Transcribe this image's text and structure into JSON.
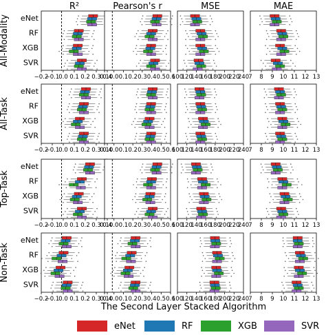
{
  "chart_data": {
    "type": "boxplot-grid",
    "col_titles": [
      "R²",
      "Pearson's r",
      "MSE",
      "MAE"
    ],
    "row_labels": [
      "All-Modality",
      "All-Task",
      "Top-Task",
      "Non-Task"
    ],
    "category_labels": [
      "eNet",
      "RF",
      "XGB",
      "SVR"
    ],
    "x_ticks": [
      [
        "−0.2",
        "−0.1",
        "0.0",
        "0.1",
        "0.2",
        "0.3",
        "0.4"
      ],
      [
        "0.1",
        "0.0",
        "0.1",
        "0.2",
        "0.3",
        "0.4",
        "0.5",
        "0.6"
      ],
      [
        "100",
        "120",
        "140",
        "160",
        "180",
        "200",
        "220",
        "240"
      ],
      [
        "7",
        "8",
        "9",
        "10",
        "11",
        "12",
        "13"
      ]
    ],
    "x_limits": [
      [
        -0.2,
        0.45
      ],
      [
        -0.1,
        0.75
      ],
      [
        100,
        250
      ],
      [
        7,
        13
      ]
    ],
    "dashed_reference_x": [
      0.0,
      0.0
    ],
    "legend_title": "The Second Layer Stacked Algorithm",
    "legend_entries": [
      "eNet",
      "RF",
      "XGB",
      "SVR"
    ],
    "colors": {
      "eNet": "#d62728",
      "RF": "#1f77b4",
      "XGB": "#2ca02c",
      "SVR": "#9467bd"
    },
    "medians": {
      "All-Modality": {
        "R2": [
          [
            0.31,
            0.3,
            0.29,
            0.3
          ],
          [
            0.17,
            0.16,
            0.15,
            0.17
          ],
          [
            0.16,
            0.15,
            0.12,
            0.16
          ],
          [
            0.2,
            0.18,
            0.17,
            0.2
          ]
        ],
        "Pearson": [
          [
            0.58,
            0.57,
            0.55,
            0.57
          ],
          [
            0.52,
            0.5,
            0.48,
            0.52
          ],
          [
            0.5,
            0.49,
            0.46,
            0.5
          ],
          [
            0.55,
            0.53,
            0.5,
            0.55
          ]
        ],
        "MSE": [
          [
            140,
            143,
            145,
            140
          ],
          [
            152,
            155,
            158,
            152
          ],
          [
            152,
            156,
            160,
            152
          ],
          [
            148,
            150,
            154,
            146
          ]
        ],
        "MAE": [
          [
            9.2,
            9.3,
            9.4,
            9.2
          ],
          [
            9.8,
            9.9,
            10.0,
            9.8
          ],
          [
            9.7,
            9.9,
            10.1,
            9.8
          ],
          [
            9.3,
            9.5,
            9.7,
            9.4
          ]
        ]
      },
      "All-Task": {
        "R2": [
          [
            0.24,
            0.23,
            0.22,
            0.24
          ],
          [
            0.22,
            0.21,
            0.2,
            0.22
          ],
          [
            0.18,
            0.16,
            0.14,
            0.18
          ],
          [
            0.22,
            0.21,
            0.2,
            0.22
          ]
        ],
        "Pearson": [
          [
            0.52,
            0.51,
            0.5,
            0.52
          ],
          [
            0.5,
            0.49,
            0.48,
            0.5
          ],
          [
            0.48,
            0.46,
            0.44,
            0.48
          ],
          [
            0.5,
            0.49,
            0.48,
            0.5
          ]
        ],
        "MSE": [
          [
            150,
            152,
            154,
            150
          ],
          [
            152,
            154,
            156,
            152
          ],
          [
            158,
            160,
            164,
            158
          ],
          [
            152,
            154,
            156,
            152
          ]
        ],
        "MAE": [
          [
            9.6,
            9.7,
            9.8,
            9.6
          ],
          [
            9.7,
            9.8,
            9.9,
            9.7
          ],
          [
            9.9,
            10.0,
            10.2,
            9.9
          ],
          [
            9.7,
            9.8,
            9.9,
            9.7
          ]
        ]
      },
      "Top-Task": {
        "R2": [
          [
            0.28,
            0.27,
            0.26,
            0.28
          ],
          [
            0.2,
            0.18,
            0.12,
            0.19
          ],
          [
            0.17,
            0.15,
            0.13,
            0.16
          ],
          [
            0.2,
            0.18,
            0.16,
            0.2
          ]
        ],
        "Pearson": [
          [
            0.58,
            0.57,
            0.55,
            0.57
          ],
          [
            0.51,
            0.5,
            0.46,
            0.5
          ],
          [
            0.49,
            0.48,
            0.45,
            0.49
          ],
          [
            0.52,
            0.5,
            0.48,
            0.52
          ]
        ],
        "MSE": [
          [
            142,
            144,
            146,
            142
          ],
          [
            156,
            158,
            164,
            156
          ],
          [
            160,
            162,
            166,
            160
          ],
          [
            154,
            156,
            158,
            154
          ]
        ],
        "MAE": [
          [
            9.3,
            9.4,
            9.5,
            9.3
          ],
          [
            9.9,
            10.0,
            10.3,
            9.9
          ],
          [
            10.1,
            10.2,
            10.4,
            10.1
          ],
          [
            9.8,
            9.9,
            10.0,
            9.8
          ]
        ]
      },
      "Non-Task": {
        "R2": [
          [
            0.05,
            0.04,
            0.02,
            0.05
          ],
          [
            0.02,
            0.0,
            -0.05,
            0.01
          ],
          [
            -0.01,
            -0.03,
            -0.06,
            -0.02
          ],
          [
            0.06,
            0.05,
            0.04,
            0.06
          ]
        ],
        "Pearson": [
          [
            0.3,
            0.29,
            0.26,
            0.3
          ],
          [
            0.25,
            0.23,
            0.18,
            0.24
          ],
          [
            0.22,
            0.2,
            0.17,
            0.21
          ],
          [
            0.3,
            0.29,
            0.27,
            0.3
          ]
        ],
        "MSE": [
          [
            185,
            186,
            188,
            185
          ],
          [
            190,
            192,
            196,
            190
          ],
          [
            188,
            190,
            194,
            188
          ],
          [
            184,
            185,
            187,
            184
          ]
        ],
        "MAE": [
          [
            11.3,
            11.3,
            11.4,
            11.3
          ],
          [
            11.5,
            11.6,
            11.8,
            11.5
          ],
          [
            11.4,
            11.5,
            11.7,
            11.4
          ],
          [
            11.2,
            11.3,
            11.4,
            11.2
          ]
        ]
      }
    }
  }
}
